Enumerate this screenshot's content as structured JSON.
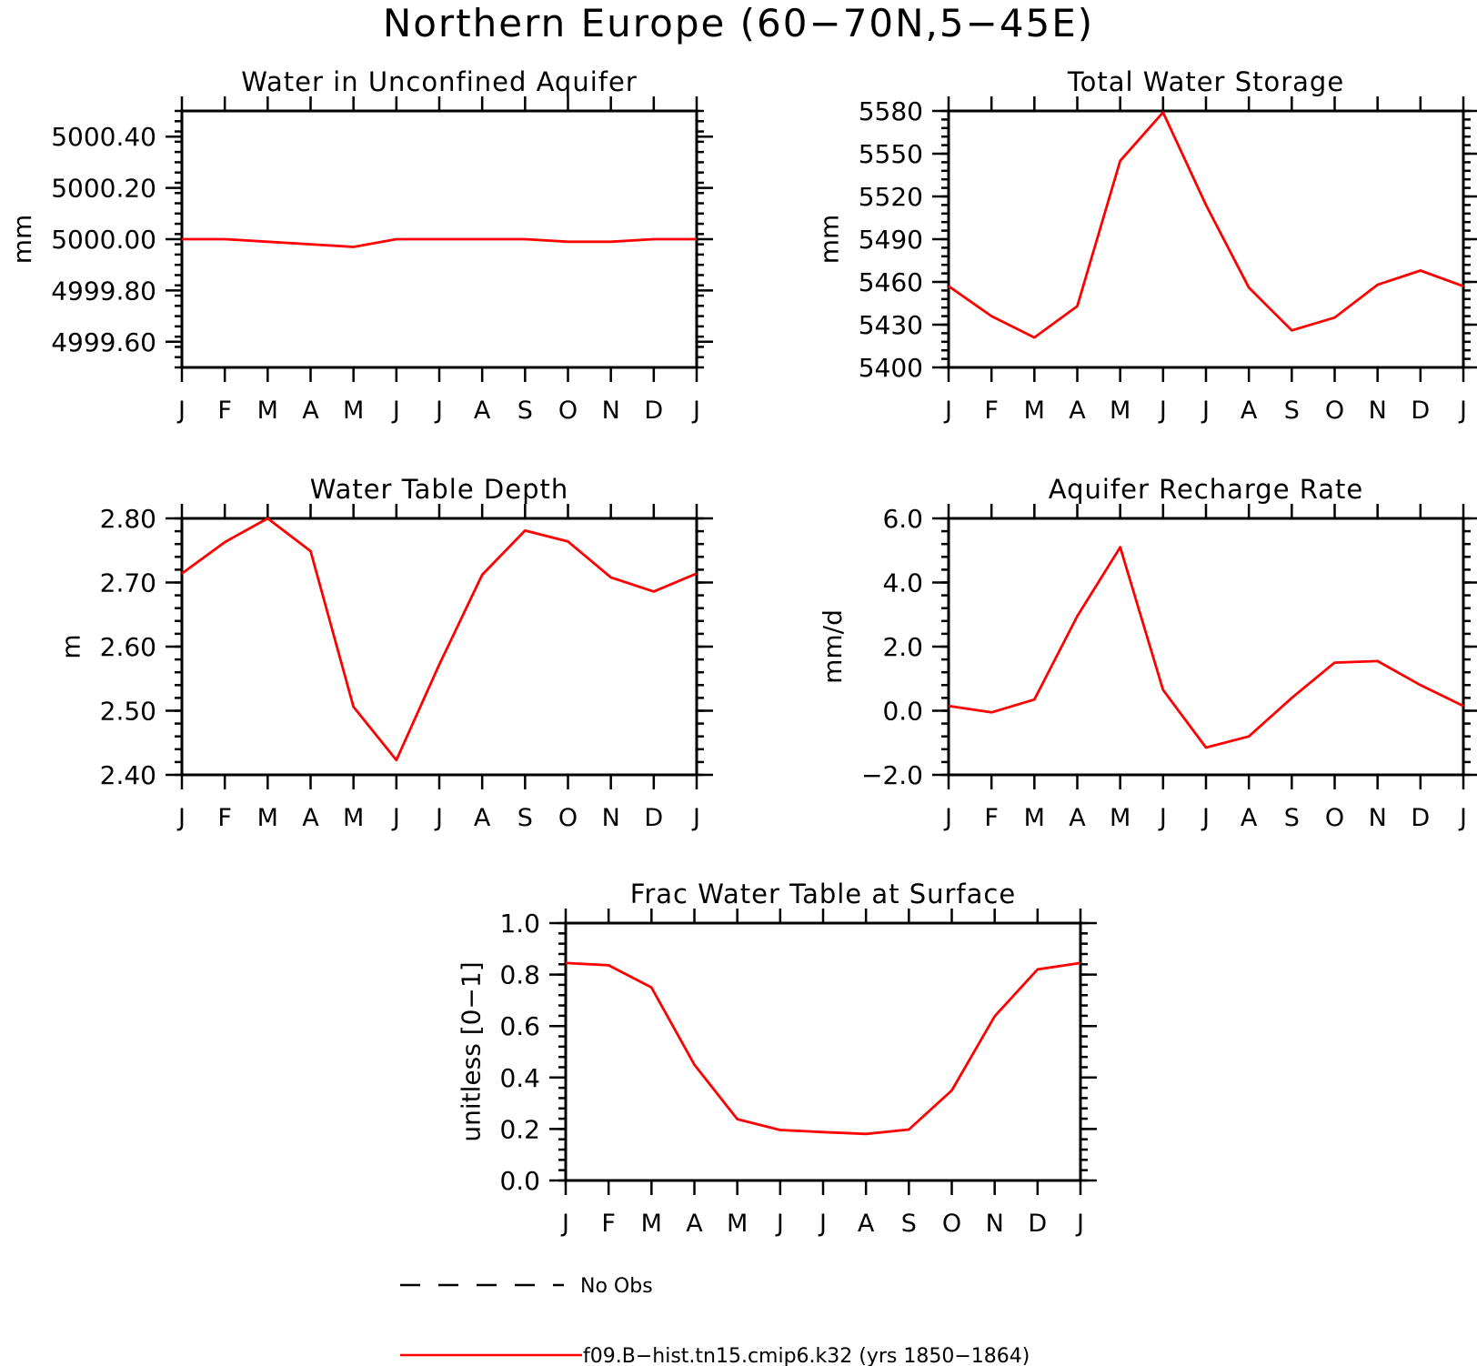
{
  "title": "Northern Europe (60−70N,5−45E)",
  "months": [
    "J",
    "F",
    "M",
    "A",
    "M",
    "J",
    "J",
    "A",
    "S",
    "O",
    "N",
    "D",
    "J"
  ],
  "legend": {
    "entries": [
      {
        "label": "No Obs",
        "style": "dashed",
        "color": "#000000"
      },
      {
        "label": "f09.B−hist.tn15.cmip6.k32 (yrs 1850−1864)",
        "style": "solid",
        "color": "#ff0000"
      }
    ]
  },
  "colors": {
    "series": "#ff0000",
    "axes": "#000000",
    "background": "#ffffff"
  },
  "chart_data": [
    {
      "type": "line",
      "title": "Water in Unconfined Aquifer",
      "xlabel": "",
      "ylabel": "mm",
      "ylim": [
        4999.5,
        5000.5
      ],
      "yticks": [
        "4999.60",
        "4999.80",
        "5000.00",
        "5000.20",
        "5000.40"
      ],
      "yticks_values": [
        4999.6,
        4999.8,
        5000.0,
        5000.2,
        5000.4
      ],
      "categories": [
        "J",
        "F",
        "M",
        "A",
        "M",
        "J",
        "J",
        "A",
        "S",
        "O",
        "N",
        "D",
        "J"
      ],
      "series": [
        {
          "values": [
            5000.0,
            5000.0,
            4999.99,
            4999.98,
            4999.97,
            5000.0,
            5000.0,
            5000.0,
            5000.0,
            4999.99,
            4999.99,
            5000.0,
            5000.0
          ]
        }
      ]
    },
    {
      "type": "line",
      "title": "Total Water Storage",
      "xlabel": "",
      "ylabel": "mm",
      "ylim": [
        5400,
        5580
      ],
      "yticks": [
        "5400",
        "5430",
        "5460",
        "5490",
        "5520",
        "5550",
        "5580"
      ],
      "yticks_values": [
        5400,
        5430,
        5460,
        5490,
        5520,
        5550,
        5580
      ],
      "categories": [
        "J",
        "F",
        "M",
        "A",
        "M",
        "J",
        "J",
        "A",
        "S",
        "O",
        "N",
        "D",
        "J"
      ],
      "series": [
        {
          "values": [
            5457,
            5436,
            5421,
            5443,
            5545,
            5579,
            5514,
            5456,
            5426,
            5435,
            5458,
            5468,
            5457
          ]
        }
      ]
    },
    {
      "type": "line",
      "title": "Water Table Depth",
      "xlabel": "",
      "ylabel": "m",
      "ylim": [
        2.4,
        2.8
      ],
      "yticks": [
        "2.40",
        "2.50",
        "2.60",
        "2.70",
        "2.80"
      ],
      "yticks_values": [
        2.4,
        2.5,
        2.6,
        2.7,
        2.8
      ],
      "categories": [
        "J",
        "F",
        "M",
        "A",
        "M",
        "J",
        "J",
        "A",
        "S",
        "O",
        "N",
        "D",
        "J"
      ],
      "series": [
        {
          "values": [
            2.714,
            2.763,
            2.8,
            2.749,
            2.506,
            2.423,
            2.572,
            2.712,
            2.781,
            2.764,
            2.708,
            2.686,
            2.714
          ]
        }
      ]
    },
    {
      "type": "line",
      "title": "Aquifer Recharge Rate",
      "xlabel": "",
      "ylabel": "mm/d",
      "ylim": [
        -2.0,
        6.0
      ],
      "yticks": [
        "−2.0",
        "0.0",
        "2.0",
        "4.0",
        "6.0"
      ],
      "yticks_values": [
        -2.0,
        0.0,
        2.0,
        4.0,
        6.0
      ],
      "categories": [
        "J",
        "F",
        "M",
        "A",
        "M",
        "J",
        "J",
        "A",
        "S",
        "O",
        "N",
        "D",
        "J"
      ],
      "series": [
        {
          "values": [
            0.15,
            -0.05,
            0.35,
            2.95,
            5.1,
            0.65,
            -1.15,
            -0.8,
            0.4,
            1.5,
            1.55,
            0.8,
            0.15
          ]
        }
      ]
    },
    {
      "type": "line",
      "title": "Frac Water Table at Surface",
      "xlabel": "",
      "ylabel": "unitless [0−1]",
      "ylim": [
        0.0,
        1.0
      ],
      "yticks": [
        "0.0",
        "0.2",
        "0.4",
        "0.6",
        "0.8",
        "1.0"
      ],
      "yticks_values": [
        0.0,
        0.2,
        0.4,
        0.6,
        0.8,
        1.0
      ],
      "categories": [
        "J",
        "F",
        "M",
        "A",
        "M",
        "J",
        "J",
        "A",
        "S",
        "O",
        "N",
        "D",
        "J"
      ],
      "series": [
        {
          "values": [
            0.845,
            0.836,
            0.75,
            0.45,
            0.238,
            0.196,
            0.188,
            0.181,
            0.198,
            0.35,
            0.638,
            0.82,
            0.845
          ]
        }
      ]
    }
  ]
}
